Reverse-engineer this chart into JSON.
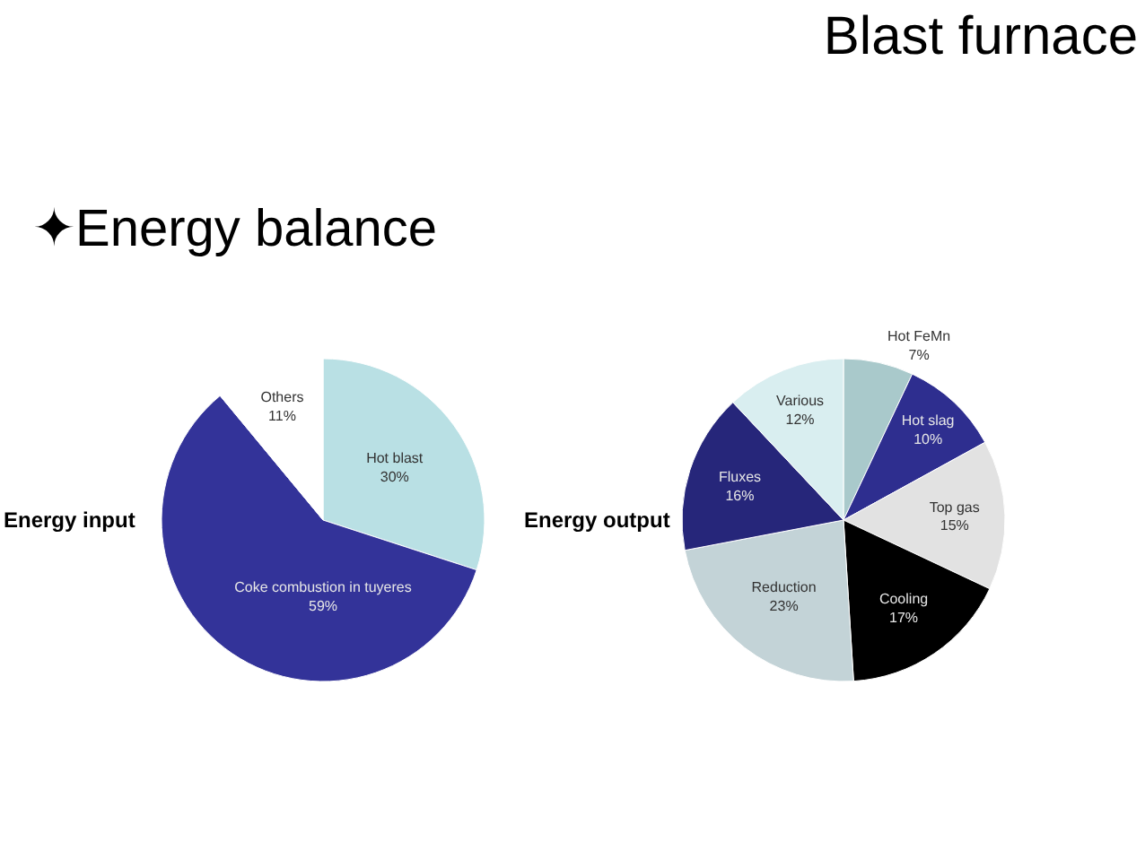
{
  "chart_data": [
    {
      "type": "pie",
      "subtitle": "✦Energy balance",
      "ylabel": "Energy input",
      "categories": [
        "Hot blast",
        "Coke combustion in tuyeres",
        "Others"
      ],
      "values": [
        30,
        59,
        11
      ],
      "value_labels": [
        "30%",
        "59%",
        "11%"
      ],
      "colors": [
        "#b9e0e4",
        "#333399",
        "#ffffff"
      ]
    },
    {
      "type": "pie",
      "title": "Blast furnace",
      "ylabel": "Energy output",
      "categories": [
        "Hot FeMn",
        "Hot slag",
        "Top gas",
        "Cooling",
        "Reduction",
        "Fluxes",
        "Various"
      ],
      "values": [
        7,
        10,
        15,
        17,
        23,
        16,
        12
      ],
      "value_labels": [
        "7%",
        "10%",
        "15%",
        "17%",
        "23%",
        "16%",
        "12%"
      ],
      "colors": [
        "#a9c9cb",
        "#2e2e8f",
        "#e2e2e2",
        "#000000",
        "#c3d3d7",
        "#26267a",
        "#d9eef0"
      ]
    }
  ]
}
